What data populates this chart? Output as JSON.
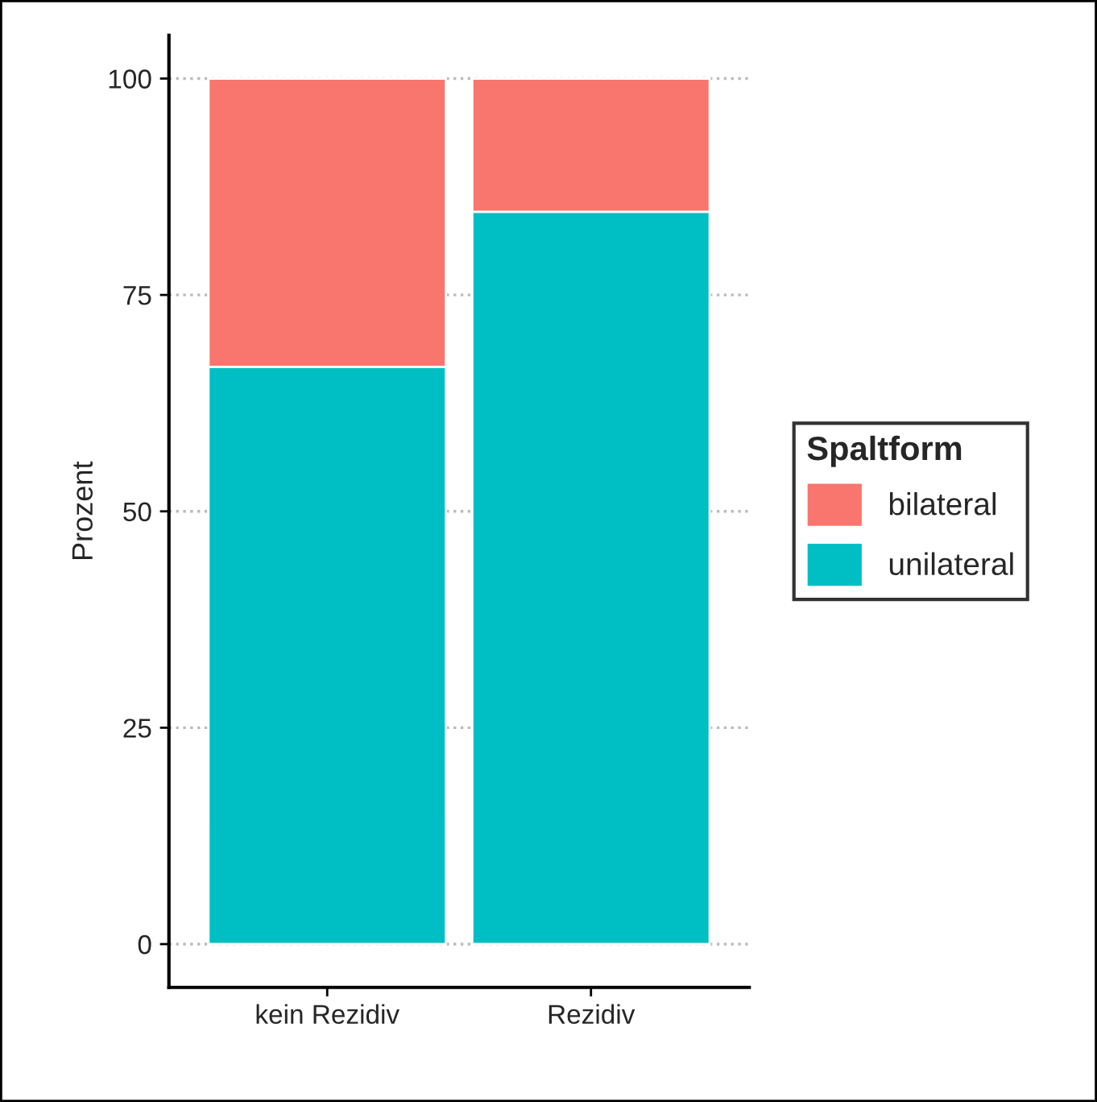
{
  "chart_data": {
    "type": "bar",
    "stacked": true,
    "ylabel": "Prozent",
    "legend_title": "Spaltform",
    "legend": "right",
    "categories": [
      "kein Rezidiv",
      "Rezidiv"
    ],
    "series": [
      {
        "name": "unilateral",
        "color": "#00bfc4",
        "values": [
          66.7,
          84.6
        ]
      },
      {
        "name": "bilateral",
        "color": "#f8766d",
        "values": [
          33.3,
          15.4
        ]
      }
    ],
    "ylim": [
      -5,
      105
    ],
    "yticks": [
      0,
      25,
      50,
      75,
      100
    ],
    "grid": "y",
    "line_style": "dotted"
  }
}
